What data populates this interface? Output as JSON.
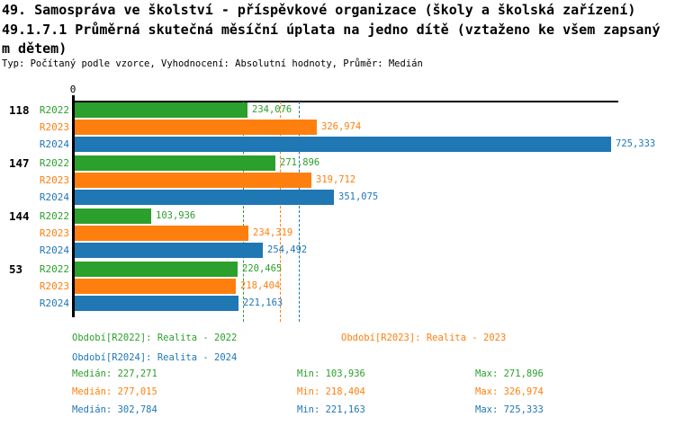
{
  "header": {
    "title_line1": "49. Samospráva ve školství - příspěvkové organizace (školy a školská zařízení)",
    "title_line2": "49.1.7.1 Průměrná skutečná měsíční úplata na jedno dítě (vztaženo ke všem zapsaný",
    "title_line3": "m dětem)",
    "subtitle": "Typ: Počítaný podle vzorce, Vyhodnocení: Absolutní hodnoty, Průměr: Medián"
  },
  "chart_data": {
    "type": "bar",
    "orientation": "horizontal",
    "title": "49.1.7.1 Průměrná skutečná měsíční úplata na jedno dítě (vztaženo ke všem zapsaným dětem)",
    "value_axis": {
      "zero_label": "0",
      "min": 0,
      "max": 725.333
    },
    "series": [
      "R2022",
      "R2023",
      "R2024"
    ],
    "series_colors": {
      "R2022": "#2ca02c",
      "R2023": "#ff7f0e",
      "R2024": "#1f77b4"
    },
    "groups": [
      {
        "label": "118",
        "bars": [
          {
            "period": "R2022",
            "value": 234.076,
            "value_label": "234,076"
          },
          {
            "period": "R2023",
            "value": 326.974,
            "value_label": "326,974"
          },
          {
            "period": "R2024",
            "value": 725.333,
            "value_label": "725,333"
          }
        ]
      },
      {
        "label": "147",
        "bars": [
          {
            "period": "R2022",
            "value": 271.896,
            "value_label": "271,896"
          },
          {
            "period": "R2023",
            "value": 319.712,
            "value_label": "319,712"
          },
          {
            "period": "R2024",
            "value": 351.075,
            "value_label": "351,075"
          }
        ]
      },
      {
        "label": "144",
        "bars": [
          {
            "period": "R2022",
            "value": 103.936,
            "value_label": "103,936"
          },
          {
            "period": "R2023",
            "value": 234.319,
            "value_label": "234,319"
          },
          {
            "period": "R2024",
            "value": 254.492,
            "value_label": "254,492"
          }
        ]
      },
      {
        "label": "53",
        "bars": [
          {
            "period": "R2022",
            "value": 220.465,
            "value_label": "220,465"
          },
          {
            "period": "R2023",
            "value": 218.404,
            "value_label": "218,404"
          },
          {
            "period": "R2024",
            "value": 221.163,
            "value_label": "221,163"
          }
        ]
      }
    ],
    "median_gridlines": [
      {
        "series": "R2022",
        "value": 227.271,
        "color": "#2ca02c"
      },
      {
        "series": "R2023",
        "value": 277.015,
        "color": "#ff7f0e"
      },
      {
        "series": "R2024",
        "value": 302.784,
        "color": "#1f77b4"
      }
    ]
  },
  "legend": {
    "items": [
      {
        "series": "R2022",
        "label": "Období[R2022]: Realita - 2022"
      },
      {
        "series": "R2023",
        "label": "Období[R2023]: Realita - 2023"
      },
      {
        "series": "R2024",
        "label": "Období[R2024]: Realita - 2024"
      }
    ]
  },
  "stats": {
    "rows": [
      {
        "series": "R2022",
        "median": "Medián: 227,271",
        "min": "Min: 103,936",
        "max": "Max: 271,896"
      },
      {
        "series": "R2023",
        "median": "Medián: 277,015",
        "min": "Min: 218,404",
        "max": "Max: 326,974"
      },
      {
        "series": "R2024",
        "median": "Medián: 302,784",
        "min": "Min: 221,163",
        "max": "Max: 725,333"
      }
    ]
  }
}
